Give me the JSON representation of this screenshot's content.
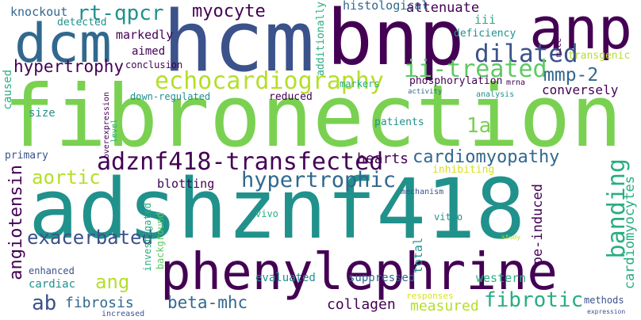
{
  "palette": {
    "dark_purple": "#440154",
    "indigo": "#3b528b",
    "blue": "#31688e",
    "teal": "#21918c",
    "green_teal": "#28ae80",
    "green": "#5ec962",
    "lime": "#7ad151",
    "yellow_green": "#b5de2b",
    "yellow": "#d8e219"
  },
  "words": {
    "fibronection": "fibronection",
    "adshznf418": "adshznf418",
    "hcm": "hcm",
    "bnp": "bnp",
    "phenylephrine": "phenylephrine",
    "dcm": "dcm",
    "anp": "anp",
    "echocardiography": "echocardiography",
    "adznf418_transfected": "adznf418-transfected",
    "cardiomyopathy": "cardiomyopathy",
    "hypertrophic": "hypertrophic",
    "dilated": "dilated",
    "ii_treated": "ii-treated",
    "banding": "banding",
    "angiotensin": "angiotensin",
    "exacerbated": "exacerbated",
    "ang": "ang",
    "beta_mhc": "beta-mhc",
    "fibrotic": "fibrotic",
    "mmp_2": "mmp-2",
    "myocyte": "myocyte",
    "rt_qpcr": "rt-qpcr",
    "aortic": "aortic",
    "hypertrophy": "hypertrophy",
    "ab": "ab",
    "fibrosis": "fibrosis",
    "collagen": "collagen",
    "cardiomyocytes": "cardiomyocytes",
    "pe_induced": "pe-induced",
    "conversely": "conversely",
    "one_a": "1a",
    "hearts": "hearts",
    "attenuate": "attenuate",
    "histological": "histological",
    "knockout": "knockout",
    "markedly": "markedly",
    "measured": "measured",
    "blotting": "blotting",
    "iii": "iii",
    "western": "western",
    "evaluated": "evaluated",
    "suppressed": "suppressed",
    "total": "total",
    "cardiac": "cardiac",
    "aimed": "aimed",
    "caused": "caused",
    "detected": "detected",
    "deficiency": "deficiency",
    "transgenic": "transgenic",
    "conclusion": "conclusion",
    "size": "size",
    "phosphorylation": "phosphorylation",
    "reduced": "reduced",
    "additionally": "additionally",
    "markers": "markers",
    "patients": "patients",
    "primary": "primary",
    "down_regulated": "down-regulated",
    "enhanced": "enhanced",
    "inhibiting": "inhibiting",
    "investigated": "investigated",
    "background": "background",
    "vivo": "vivo",
    "vitro": "vitro",
    "mechanism": "mechanism",
    "responses": "responses",
    "mrna": "mrna",
    "mice": "mice",
    "overexpression": "overexpression",
    "level": "level",
    "activity": "activity",
    "analysis": "analysis",
    "study": "study",
    "methods": "methods",
    "increased": "increased",
    "expression": "expression"
  }
}
